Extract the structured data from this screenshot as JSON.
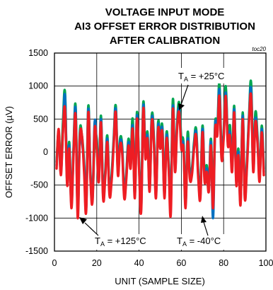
{
  "chart_data": {
    "type": "line",
    "title_lines": [
      "VOLTAGE INPUT MODE",
      "AI3 OFFSET ERROR DISTRIBUTION",
      "AFTER CALIBRATION"
    ],
    "tag": "toc20",
    "xlabel": "UNIT (SAMPLE SIZE)",
    "ylabel": "OFFSET ERROR (µV)",
    "xlim": [
      0,
      100
    ],
    "ylim": [
      -1500,
      1500
    ],
    "x_ticks": [
      0,
      20,
      40,
      60,
      80,
      100
    ],
    "y_ticks": [
      -1500,
      -1000,
      -500,
      0,
      500,
      1000,
      1500
    ],
    "grid": true,
    "series": [
      {
        "temperature": "+25°C",
        "color": "#00a651",
        "x": [
          1,
          2,
          3,
          4,
          5,
          6,
          7,
          8,
          9,
          10,
          11,
          12,
          13,
          14,
          15,
          16,
          17,
          18,
          19,
          20,
          21,
          22,
          23,
          24,
          25,
          26,
          27,
          28,
          29,
          30,
          31,
          32,
          33,
          34,
          35,
          36,
          37,
          38,
          39,
          40,
          41,
          42,
          43,
          44,
          45,
          46,
          47,
          48,
          49,
          50,
          51,
          52,
          53,
          54,
          55,
          56,
          57,
          58,
          59,
          60,
          61,
          62,
          63,
          64,
          65,
          66,
          67,
          68,
          69,
          70,
          71,
          72,
          73,
          74,
          75,
          76,
          77,
          78,
          79,
          80,
          81,
          82,
          83,
          84,
          85,
          86,
          87,
          88,
          89,
          90,
          91,
          92,
          93,
          94,
          95,
          96,
          97,
          98,
          99
        ],
        "values": [
          -150,
          300,
          -250,
          450,
          900,
          -400,
          150,
          -750,
          50,
          700,
          -850,
          300,
          250,
          -150,
          -800,
          700,
          -300,
          -650,
          150,
          200,
          -350,
          550,
          -600,
          -300,
          250,
          -550,
          -350,
          200,
          700,
          -250,
          200,
          100,
          -600,
          -300,
          200,
          -100,
          500,
          -600,
          600,
          -150,
          -750,
          750,
          0,
          300,
          -500,
          550,
          250,
          -600,
          450,
          150,
          400,
          -600,
          300,
          -150,
          -700,
          800,
          -200,
          450,
          750,
          200,
          150,
          -750,
          300,
          -300,
          -250,
          150,
          350,
          -300,
          -600,
          400,
          -350,
          -200,
          -500,
          200,
          -700,
          450,
          350,
          1050,
          0,
          300,
          1000,
          200,
          400,
          -200,
          700,
          -400,
          50,
          -700,
          600,
          -600,
          -150,
          550,
          1050,
          -200,
          600,
          250,
          -350,
          400,
          -250
        ]
      },
      {
        "temperature": "-40°C",
        "color": "#0070c0",
        "x": [
          1,
          2,
          3,
          4,
          5,
          6,
          7,
          8,
          9,
          10,
          11,
          12,
          13,
          14,
          15,
          16,
          17,
          18,
          19,
          20,
          21,
          22,
          23,
          24,
          25,
          26,
          27,
          28,
          29,
          30,
          31,
          32,
          33,
          34,
          35,
          36,
          37,
          38,
          39,
          40,
          41,
          42,
          43,
          44,
          45,
          46,
          47,
          48,
          49,
          50,
          51,
          52,
          53,
          54,
          55,
          56,
          57,
          58,
          59,
          60,
          61,
          62,
          63,
          64,
          65,
          66,
          67,
          68,
          69,
          70,
          71,
          72,
          73,
          74,
          75,
          76,
          77,
          78,
          79,
          80,
          81,
          82,
          83,
          84,
          85,
          86,
          87,
          88,
          89,
          90,
          91,
          92,
          93,
          94,
          95,
          96,
          97,
          98,
          99
        ],
        "values": [
          -200,
          250,
          -300,
          300,
          850,
          -450,
          100,
          -800,
          0,
          650,
          -900,
          250,
          150,
          -200,
          -850,
          650,
          -350,
          -700,
          450,
          100,
          -400,
          500,
          -650,
          -350,
          200,
          -600,
          -400,
          150,
          650,
          -300,
          150,
          50,
          -650,
          -350,
          150,
          -200,
          400,
          -650,
          550,
          -200,
          -850,
          700,
          -50,
          250,
          -550,
          500,
          200,
          -650,
          400,
          100,
          350,
          -650,
          250,
          -200,
          -750,
          700,
          -250,
          400,
          650,
          100,
          100,
          -800,
          200,
          -350,
          -300,
          100,
          300,
          -350,
          -650,
          350,
          -400,
          -250,
          -550,
          150,
          -1000,
          400,
          300,
          950,
          -50,
          250,
          900,
          150,
          300,
          -250,
          650,
          -450,
          0,
          -750,
          550,
          -650,
          -200,
          500,
          950,
          -250,
          500,
          200,
          -400,
          350,
          -300
        ]
      },
      {
        "temperature": "+125°C",
        "color": "#ee1d23",
        "x": [
          1,
          2,
          3,
          4,
          5,
          6,
          7,
          8,
          9,
          10,
          11,
          12,
          13,
          14,
          15,
          16,
          17,
          18,
          19,
          20,
          21,
          22,
          23,
          24,
          25,
          26,
          27,
          28,
          29,
          30,
          31,
          32,
          33,
          34,
          35,
          36,
          37,
          38,
          39,
          40,
          41,
          42,
          43,
          44,
          45,
          46,
          47,
          48,
          49,
          50,
          51,
          52,
          53,
          54,
          55,
          56,
          57,
          58,
          59,
          60,
          61,
          62,
          63,
          64,
          65,
          66,
          67,
          68,
          69,
          70,
          71,
          72,
          73,
          74,
          75,
          76,
          77,
          78,
          79,
          80,
          81,
          82,
          83,
          84,
          85,
          86,
          87,
          88,
          89,
          90,
          91,
          92,
          93,
          94,
          95,
          96,
          97,
          98,
          99
        ],
        "values": [
          -250,
          350,
          -350,
          300,
          650,
          -500,
          50,
          -850,
          -50,
          550,
          -1000,
          200,
          250,
          -300,
          -900,
          600,
          -400,
          -750,
          350,
          50,
          -450,
          450,
          -700,
          -400,
          150,
          -650,
          -450,
          100,
          600,
          -350,
          100,
          0,
          -700,
          -400,
          100,
          -250,
          350,
          -700,
          500,
          -250,
          -900,
          650,
          -100,
          200,
          -600,
          450,
          150,
          -700,
          350,
          50,
          300,
          -700,
          200,
          -250,
          -950,
          650,
          -300,
          350,
          600,
          50,
          50,
          -850,
          150,
          -400,
          -350,
          50,
          250,
          -400,
          -700,
          300,
          -450,
          -300,
          -600,
          100,
          -850,
          350,
          250,
          850,
          -100,
          200,
          850,
          100,
          250,
          -300,
          600,
          -500,
          -50,
          -800,
          500,
          -700,
          -250,
          450,
          850,
          -300,
          450,
          150,
          -450,
          300,
          -350
        ]
      }
    ],
    "annotations": [
      {
        "prefix": "T",
        "sub": "A",
        "text": " = +25°C"
      },
      {
        "prefix": "T",
        "sub": "A",
        "text": " = +125°C"
      },
      {
        "prefix": "T",
        "sub": "A",
        "text": " = -40°C"
      }
    ]
  }
}
